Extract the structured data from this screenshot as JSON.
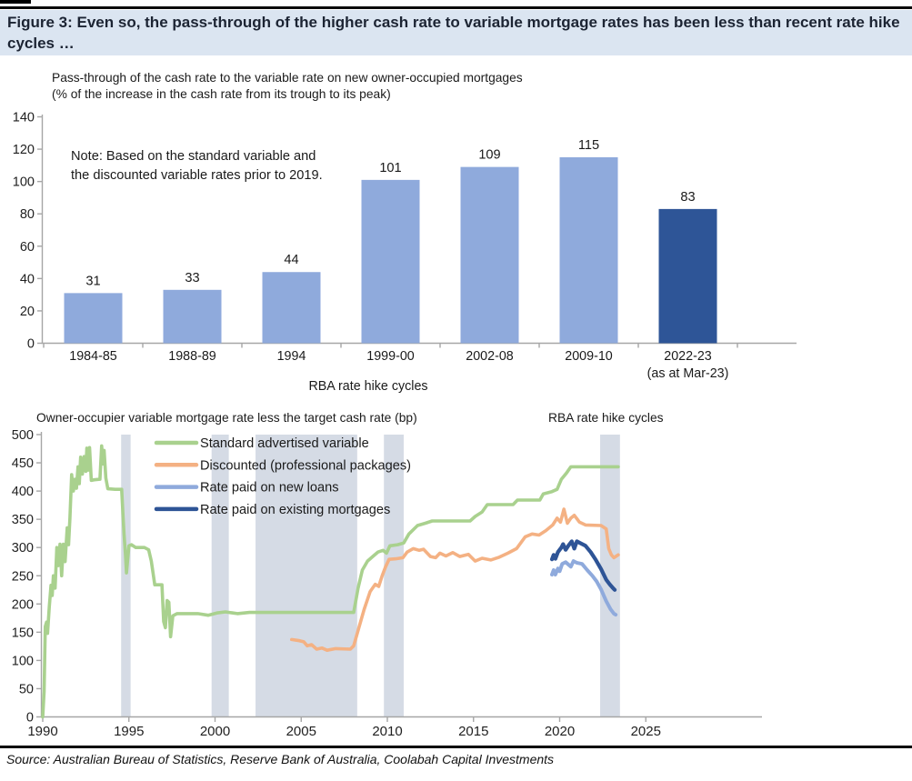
{
  "header": {
    "title": "Figure 3: Even so, the pass-through of the higher cash rate to variable mortgage rates has been less than recent rate hike cycles …"
  },
  "source_line": "Source: Australian Bureau of Statistics, Reserve Bank of Australia, Coolabah Capital Investments",
  "colors": {
    "header_bg": "#dbe5f1",
    "bar_light": "#8faadc",
    "bar_dark": "#2e5597",
    "band": "#d5dbe5",
    "axis": "#a6a6a6",
    "green": "#a9d18e",
    "orange": "#f4b183",
    "light_blue": "#8faadc",
    "navy": "#2e5496",
    "label_text": "#1f1f1f"
  },
  "chart_data": [
    {
      "type": "bar",
      "title": "Pass-through of the cash rate to the variable rate on new owner-occupied mortgages",
      "subtitle": "(% of the increase in the cash rate from its trough to its peak)",
      "note": "Note: Based on the standard variable and the discounted variable rates prior to 2019.",
      "xlabel": "RBA rate hike cycles",
      "categories": [
        "1984-85",
        "1988-89",
        "1994",
        "1999-00",
        "2002-08",
        "2009-10",
        "2022-23"
      ],
      "last_category_sub": "(as at Mar-23)",
      "values": [
        31,
        33,
        44,
        101,
        109,
        115,
        83
      ],
      "bar_styles": [
        "light",
        "light",
        "light",
        "light",
        "light",
        "light",
        "dark"
      ],
      "ylim": [
        0,
        140
      ],
      "ytick_step": 20,
      "grid": false,
      "legend": "none"
    },
    {
      "type": "line",
      "title": "Owner-occupier variable mortgage rate less the target cash rate (bp)",
      "right_label": "RBA rate hike cycles",
      "ylim": [
        0,
        500
      ],
      "ytick_step": 50,
      "xticks": [
        1990,
        1995,
        2000,
        2005,
        2010,
        2015,
        2020,
        2025
      ],
      "bands_note": "shaded vertical bands mark RBA rate hike cycles",
      "bands": [
        [
          1994.55,
          1995.1
        ],
        [
          1999.8,
          2000.8
        ],
        [
          2002.35,
          2008.25
        ],
        [
          2009.8,
          2010.95
        ],
        [
          2022.35,
          2023.5
        ]
      ],
      "legend_position": "top-left-inside",
      "series": [
        {
          "name": "Standard advertised variable",
          "color": "#a9d18e",
          "width": 3.6,
          "points": [
            [
              1990.0,
              0
            ],
            [
              1990.08,
              45
            ],
            [
              1990.15,
              160
            ],
            [
              1990.22,
              168
            ],
            [
              1990.28,
              148
            ],
            [
              1990.38,
              195
            ],
            [
              1990.48,
              233
            ],
            [
              1990.55,
              215
            ],
            [
              1990.62,
              250
            ],
            [
              1990.72,
              228
            ],
            [
              1990.82,
              300
            ],
            [
              1990.9,
              268
            ],
            [
              1991.0,
              306
            ],
            [
              1991.1,
              250
            ],
            [
              1991.2,
              306
            ],
            [
              1991.3,
              275
            ],
            [
              1991.42,
              335
            ],
            [
              1991.5,
              305
            ],
            [
              1991.58,
              352
            ],
            [
              1991.68,
              429
            ],
            [
              1991.78,
              400
            ],
            [
              1991.88,
              421
            ],
            [
              1991.96,
              405
            ],
            [
              1992.05,
              443
            ],
            [
              1992.12,
              413
            ],
            [
              1992.2,
              460
            ],
            [
              1992.3,
              430
            ],
            [
              1992.4,
              461
            ],
            [
              1992.5,
              435
            ],
            [
              1992.56,
              476
            ],
            [
              1992.64,
              437
            ],
            [
              1992.72,
              477
            ],
            [
              1992.82,
              419
            ],
            [
              1993.0,
              420
            ],
            [
              1993.32,
              421
            ],
            [
              1993.42,
              480
            ],
            [
              1993.5,
              448
            ],
            [
              1993.56,
              472
            ],
            [
              1993.66,
              423
            ],
            [
              1993.78,
              404
            ],
            [
              1994.2,
              403
            ],
            [
              1994.58,
              403
            ],
            [
              1994.66,
              356
            ],
            [
              1994.72,
              324
            ],
            [
              1994.8,
              287
            ],
            [
              1994.86,
              255
            ],
            [
              1995.0,
              303
            ],
            [
              1995.15,
              305
            ],
            [
              1995.4,
              300
            ],
            [
              1995.9,
              300
            ],
            [
              1996.15,
              296
            ],
            [
              1996.3,
              276
            ],
            [
              1996.4,
              255
            ],
            [
              1996.5,
              234
            ],
            [
              1996.92,
              234
            ],
            [
              1997.02,
              169
            ],
            [
              1997.12,
              158
            ],
            [
              1997.22,
              206
            ],
            [
              1997.32,
              203
            ],
            [
              1997.42,
              142
            ],
            [
              1997.55,
              179
            ],
            [
              1997.8,
              183
            ],
            [
              1999.0,
              183
            ],
            [
              1999.6,
              180
            ],
            [
              2000.1,
              184
            ],
            [
              2000.6,
              186
            ],
            [
              2001.3,
              183
            ],
            [
              2002.0,
              185
            ],
            [
              2008.05,
              185
            ],
            [
              2008.3,
              228
            ],
            [
              2008.55,
              260
            ],
            [
              2008.85,
              276
            ],
            [
              2009.15,
              284
            ],
            [
              2009.45,
              292
            ],
            [
              2009.75,
              295
            ],
            [
              2009.95,
              290
            ],
            [
              2010.15,
              303
            ],
            [
              2010.6,
              305
            ],
            [
              2010.95,
              308
            ],
            [
              2011.25,
              324
            ],
            [
              2011.75,
              339
            ],
            [
              2012.2,
              343
            ],
            [
              2012.6,
              347
            ],
            [
              2014.8,
              347
            ],
            [
              2015.1,
              355
            ],
            [
              2015.5,
              363
            ],
            [
              2015.8,
              376
            ],
            [
              2017.3,
              376
            ],
            [
              2017.55,
              384
            ],
            [
              2018.85,
              384
            ],
            [
              2019.05,
              395
            ],
            [
              2019.55,
              399
            ],
            [
              2019.85,
              403
            ],
            [
              2020.1,
              421
            ],
            [
              2020.4,
              432
            ],
            [
              2020.65,
              443
            ],
            [
              2023.4,
              443
            ]
          ]
        },
        {
          "name": "Discounted (professional packages)",
          "color": "#f4b183",
          "width": 3.6,
          "points": [
            [
              2004.45,
              137
            ],
            [
              2004.9,
              135
            ],
            [
              2005.15,
              133
            ],
            [
              2005.35,
              126
            ],
            [
              2005.6,
              128
            ],
            [
              2005.9,
              120
            ],
            [
              2006.2,
              122
            ],
            [
              2006.5,
              118
            ],
            [
              2007.0,
              121
            ],
            [
              2007.85,
              120
            ],
            [
              2008.05,
              126
            ],
            [
              2008.35,
              158
            ],
            [
              2008.65,
              190
            ],
            [
              2009.0,
              222
            ],
            [
              2009.3,
              235
            ],
            [
              2009.5,
              231
            ],
            [
              2009.7,
              250
            ],
            [
              2009.9,
              266
            ],
            [
              2010.1,
              279
            ],
            [
              2010.5,
              280
            ],
            [
              2010.9,
              282
            ],
            [
              2011.15,
              292
            ],
            [
              2011.5,
              298
            ],
            [
              2011.85,
              295
            ],
            [
              2012.1,
              297
            ],
            [
              2012.5,
              284
            ],
            [
              2012.8,
              282
            ],
            [
              2013.05,
              290
            ],
            [
              2013.4,
              285
            ],
            [
              2013.8,
              291
            ],
            [
              2014.2,
              284
            ],
            [
              2014.7,
              288
            ],
            [
              2015.1,
              276
            ],
            [
              2015.5,
              281
            ],
            [
              2016.0,
              278
            ],
            [
              2016.5,
              283
            ],
            [
              2017.0,
              290
            ],
            [
              2017.5,
              298
            ],
            [
              2018.0,
              319
            ],
            [
              2018.4,
              324
            ],
            [
              2018.8,
              322
            ],
            [
              2019.2,
              330
            ],
            [
              2019.6,
              340
            ],
            [
              2019.85,
              352
            ],
            [
              2020.05,
              345
            ],
            [
              2020.25,
              368
            ],
            [
              2020.45,
              343
            ],
            [
              2020.65,
              352
            ],
            [
              2020.85,
              357
            ],
            [
              2021.15,
              345
            ],
            [
              2021.5,
              340
            ],
            [
              2022.4,
              339
            ],
            [
              2022.7,
              333
            ],
            [
              2022.85,
              298
            ],
            [
              2023.0,
              287
            ],
            [
              2023.15,
              282
            ],
            [
              2023.4,
              287
            ]
          ]
        },
        {
          "name": "Rate paid on new loans",
          "color": "#8faadc",
          "width": 4,
          "points": [
            [
              2019.55,
              252
            ],
            [
              2019.65,
              260
            ],
            [
              2019.75,
              252
            ],
            [
              2019.9,
              263
            ],
            [
              2020.0,
              258
            ],
            [
              2020.15,
              271
            ],
            [
              2020.35,
              274
            ],
            [
              2020.5,
              270
            ],
            [
              2020.65,
              266
            ],
            [
              2020.8,
              276
            ],
            [
              2021.0,
              273
            ],
            [
              2021.3,
              271
            ],
            [
              2021.6,
              260
            ],
            [
              2021.9,
              250
            ],
            [
              2022.15,
              240
            ],
            [
              2022.4,
              226
            ],
            [
              2022.7,
              205
            ],
            [
              2022.95,
              191
            ],
            [
              2023.15,
              183
            ],
            [
              2023.25,
              181
            ]
          ]
        },
        {
          "name": "Rate paid on existing mortgages",
          "color": "#2e5496",
          "width": 4.2,
          "points": [
            [
              2019.55,
              279
            ],
            [
              2019.65,
              287
            ],
            [
              2019.75,
              280
            ],
            [
              2019.9,
              292
            ],
            [
              2020.1,
              300
            ],
            [
              2020.2,
              306
            ],
            [
              2020.35,
              296
            ],
            [
              2020.5,
              303
            ],
            [
              2020.7,
              311
            ],
            [
              2020.85,
              298
            ],
            [
              2021.0,
              311
            ],
            [
              2021.25,
              307
            ],
            [
              2021.5,
              303
            ],
            [
              2021.8,
              292
            ],
            [
              2022.1,
              278
            ],
            [
              2022.4,
              262
            ],
            [
              2022.7,
              243
            ],
            [
              2022.9,
              235
            ],
            [
              2023.1,
              228
            ],
            [
              2023.2,
              225
            ]
          ]
        }
      ]
    }
  ]
}
